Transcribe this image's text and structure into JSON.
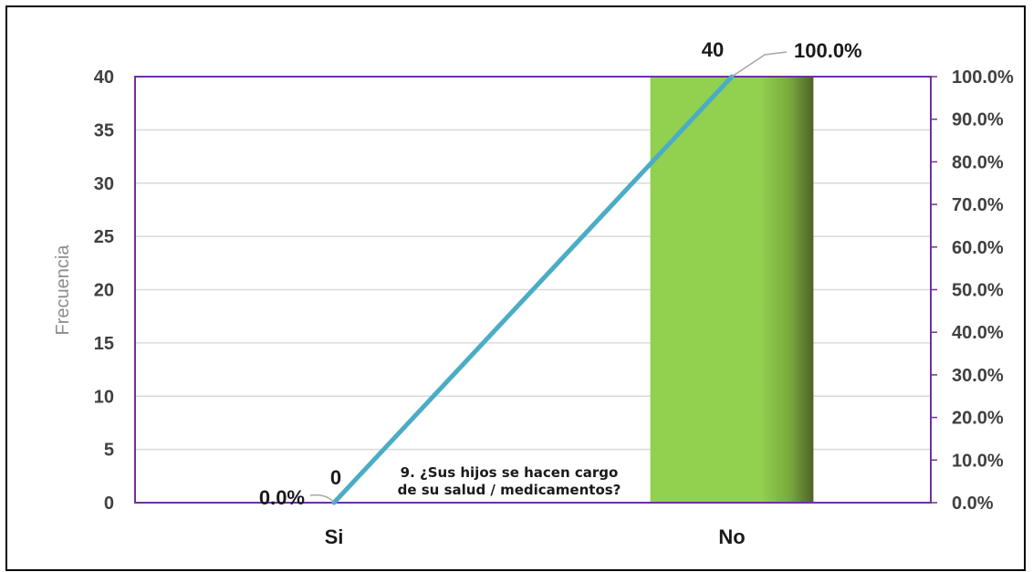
{
  "chart_data": {
    "type": "bar",
    "title_lines": [
      "9. ¿Sus hijos se hacen cargo",
      "de su salud / medicamentos?"
    ],
    "ylabel": "Frecuencia",
    "categories": [
      "Si",
      "No"
    ],
    "values": [
      0,
      40
    ],
    "value_labels": [
      "0",
      "40"
    ],
    "ylim": [
      0,
      40
    ],
    "yticks": [
      0,
      5,
      10,
      15,
      20,
      25,
      30,
      35,
      40
    ],
    "ytick_labels": [
      "0",
      "5",
      "10",
      "15",
      "20",
      "25",
      "30",
      "35",
      "40"
    ],
    "y2lim": [
      0,
      100
    ],
    "y2ticks": [
      0,
      10,
      20,
      30,
      40,
      50,
      60,
      70,
      80,
      90,
      100
    ],
    "y2tick_labels": [
      "0.0%",
      "10.0%",
      "20.0%",
      "30.0%",
      "40.0%",
      "50.0%",
      "60.0%",
      "70.0%",
      "80.0%",
      "90.0%",
      "100.0%"
    ],
    "line": {
      "values": [
        0,
        100
      ],
      "labels": [
        "0.0%",
        "100.0%"
      ],
      "color": "#4bacc6"
    },
    "bar_color": "#92d050",
    "bar_shade_color": "#4f6228",
    "plot_border_color": "#7030a0",
    "grid": true
  }
}
